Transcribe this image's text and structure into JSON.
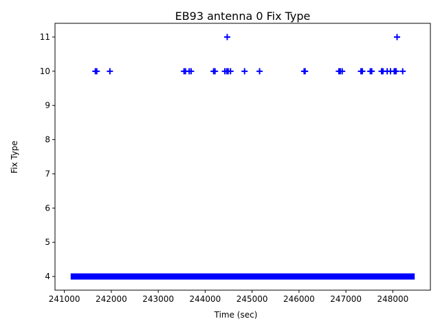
{
  "chart_data": {
    "type": "scatter",
    "title": "EB93 antenna 0 Fix Type",
    "xlabel": "Time (sec)",
    "ylabel": "Fix Type",
    "xlim": [
      240800,
      248800
    ],
    "ylim": [
      3.6,
      11.4
    ],
    "xticks": [
      241000,
      242000,
      243000,
      244000,
      245000,
      246000,
      247000,
      248000
    ],
    "yticks": [
      4,
      5,
      6,
      7,
      8,
      9,
      10,
      11
    ],
    "grid": false,
    "legend": "none",
    "marker": "plus",
    "color": "#0000ff",
    "series": [
      {
        "dense_segment": {
          "y": 4,
          "x_start": 241200,
          "x_end": 248400
        },
        "points": [
          {
            "x": 241660,
            "y": 10
          },
          {
            "x": 241690,
            "y": 10
          },
          {
            "x": 241970,
            "y": 10
          },
          {
            "x": 243550,
            "y": 10
          },
          {
            "x": 243580,
            "y": 10
          },
          {
            "x": 243660,
            "y": 10
          },
          {
            "x": 243700,
            "y": 10
          },
          {
            "x": 244180,
            "y": 10
          },
          {
            "x": 244210,
            "y": 10
          },
          {
            "x": 244420,
            "y": 10
          },
          {
            "x": 244460,
            "y": 10
          },
          {
            "x": 244490,
            "y": 10
          },
          {
            "x": 244540,
            "y": 10
          },
          {
            "x": 244840,
            "y": 10
          },
          {
            "x": 245160,
            "y": 10
          },
          {
            "x": 246110,
            "y": 10
          },
          {
            "x": 246130,
            "y": 10
          },
          {
            "x": 246850,
            "y": 10
          },
          {
            "x": 246880,
            "y": 10
          },
          {
            "x": 246920,
            "y": 10
          },
          {
            "x": 247320,
            "y": 10
          },
          {
            "x": 247350,
            "y": 10
          },
          {
            "x": 247520,
            "y": 10
          },
          {
            "x": 247550,
            "y": 10
          },
          {
            "x": 247760,
            "y": 10
          },
          {
            "x": 247790,
            "y": 10
          },
          {
            "x": 247880,
            "y": 10
          },
          {
            "x": 247950,
            "y": 10
          },
          {
            "x": 248030,
            "y": 10
          },
          {
            "x": 248050,
            "y": 10
          },
          {
            "x": 248070,
            "y": 10
          },
          {
            "x": 248210,
            "y": 10
          },
          {
            "x": 244470,
            "y": 11
          },
          {
            "x": 248090,
            "y": 11
          }
        ]
      }
    ]
  }
}
